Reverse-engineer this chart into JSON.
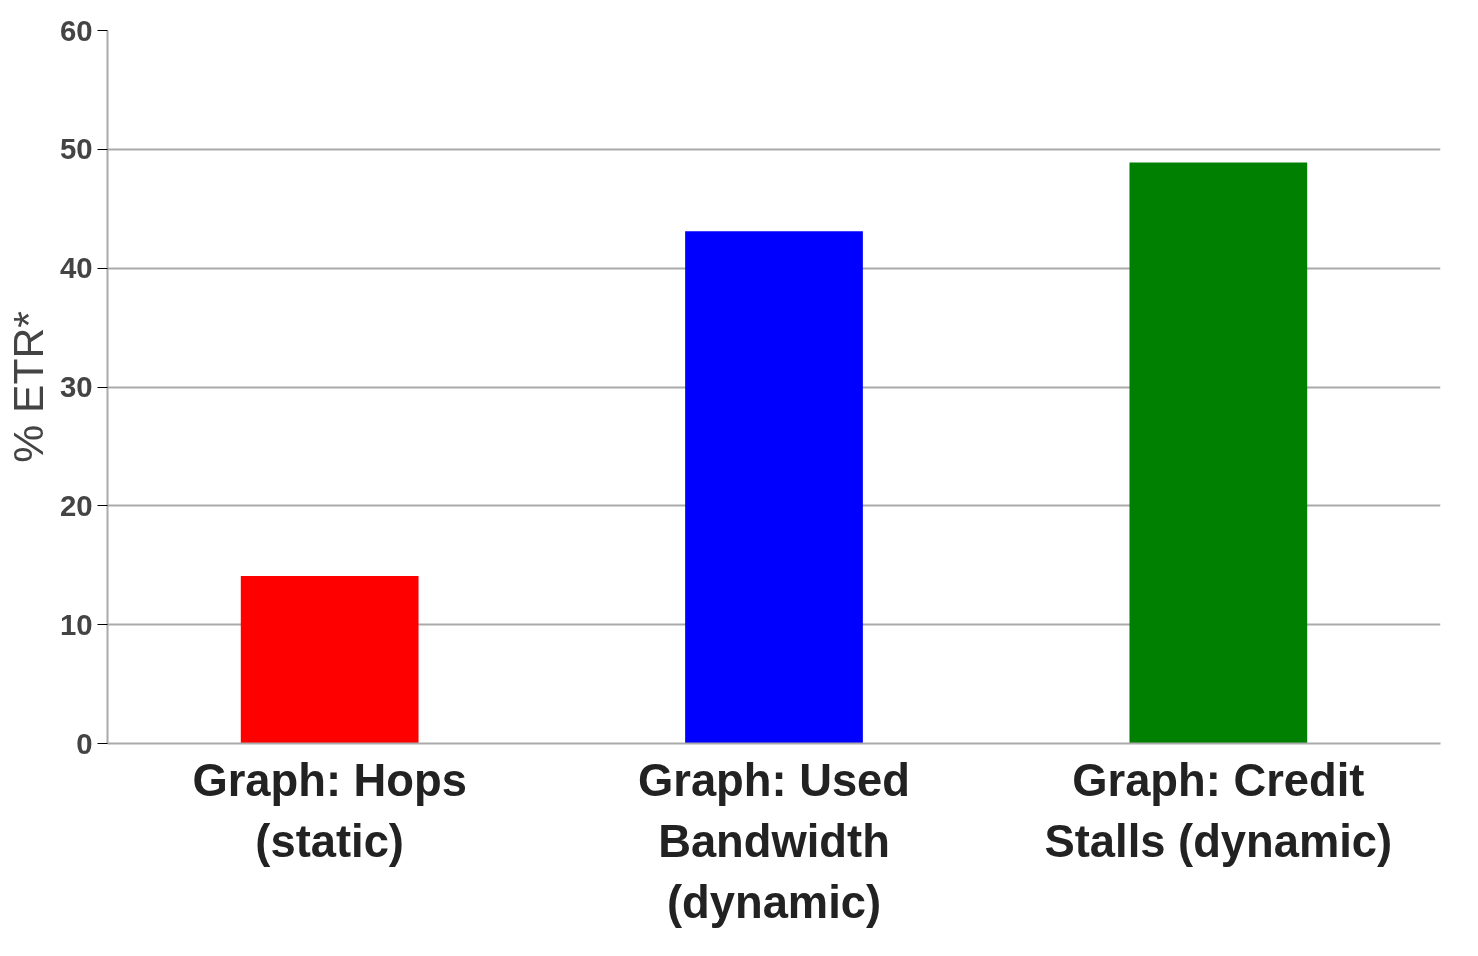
{
  "chart_data": {
    "type": "bar",
    "ylabel": "% ETR*",
    "categories": [
      "Graph: Hops (static)",
      "Graph: Used Bandwidth (dynamic)",
      "Graph: Credit Stalls (dynamic)"
    ],
    "values": [
      14.1,
      43.1,
      48.9
    ],
    "colors": [
      "#ff0000",
      "#0000ff",
      "#008000"
    ],
    "ylim": [
      0,
      60
    ],
    "yticks": [
      0,
      10,
      20,
      30,
      40,
      50,
      60
    ],
    "grid": "y"
  }
}
